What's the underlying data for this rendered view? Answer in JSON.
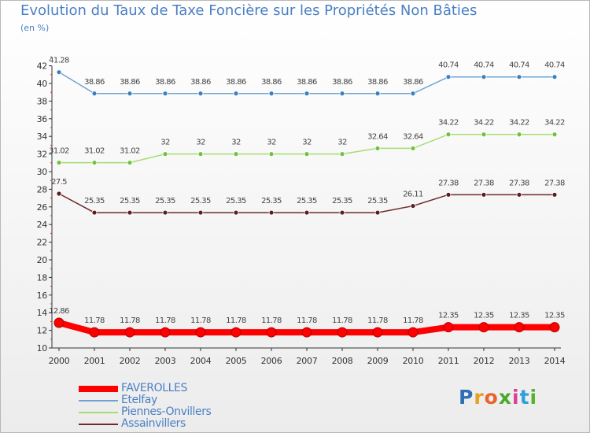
{
  "header": {
    "title": "Evolution du Taux de Taxe Foncière sur les Propriétés Non Bâties",
    "unit": "(en %)"
  },
  "logo": {
    "letters": [
      "P",
      "r",
      "o",
      "x",
      "i",
      "t",
      "i"
    ],
    "colors": [
      "#2f6fb5",
      "#e8a020",
      "#e8642c",
      "#4aa82a",
      "#d94090",
      "#2f9fd8",
      "#5ab030"
    ]
  },
  "chart_data": {
    "type": "line",
    "title": "Evolution du Taux de Taxe Foncière sur les Propriétés Non Bâties",
    "ylabel": "(en %)",
    "xlabel": "",
    "x": [
      "2000",
      "2001",
      "2002",
      "2003",
      "2004",
      "2005",
      "2006",
      "2007",
      "2008",
      "2009",
      "2010",
      "2011",
      "2012",
      "2013",
      "2014"
    ],
    "ylim": [
      10,
      42
    ],
    "yticks": [
      10,
      12,
      14,
      16,
      18,
      20,
      22,
      24,
      26,
      28,
      30,
      32,
      34,
      36,
      38,
      40,
      42
    ],
    "grid": false,
    "legend_position": "bottom-left",
    "series": [
      {
        "name": "FAVEROLLES",
        "color": "#ff0000",
        "emphasis": true,
        "values": [
          12.86,
          11.78,
          11.78,
          11.78,
          11.78,
          11.78,
          11.78,
          11.78,
          11.78,
          11.78,
          11.78,
          12.35,
          12.35,
          12.35,
          12.35
        ],
        "labels": [
          "12.86",
          "11.78",
          "11.78",
          "11.78",
          "11.78",
          "11.78",
          "11.78",
          "11.78",
          "11.78",
          "11.78",
          "11.78",
          "12.35",
          "12.35",
          "12.35",
          "12.35"
        ]
      },
      {
        "name": "Etelfay",
        "color": "#6fa3d0",
        "marker": "#3c80bf",
        "values": [
          41.28,
          38.86,
          38.86,
          38.86,
          38.86,
          38.86,
          38.86,
          38.86,
          38.86,
          38.86,
          38.86,
          40.74,
          40.74,
          40.74,
          40.74
        ],
        "labels": [
          "41.28",
          "38.86",
          "38.86",
          "38.86",
          "38.86",
          "38.86",
          "38.86",
          "38.86",
          "38.86",
          "38.86",
          "38.86",
          "40.74",
          "40.74",
          "40.74",
          "40.74"
        ]
      },
      {
        "name": "Piennes-Onvillers",
        "color": "#a8dc70",
        "marker": "#72c040",
        "values": [
          31.02,
          31.02,
          31.02,
          32,
          32,
          32,
          32,
          32,
          32,
          32.64,
          32.64,
          34.22,
          34.22,
          34.22,
          34.22
        ],
        "labels": [
          "31.02",
          "31.02",
          "31.02",
          "32",
          "32",
          "32",
          "32",
          "32",
          "32",
          "32.64",
          "32.64",
          "34.22",
          "34.22",
          "34.22",
          "34.22"
        ]
      },
      {
        "name": "Assainvillers",
        "color": "#6e2a2a",
        "marker": "#5a1f1f",
        "values": [
          27.5,
          25.35,
          25.35,
          25.35,
          25.35,
          25.35,
          25.35,
          25.35,
          25.35,
          25.35,
          26.11,
          27.38,
          27.38,
          27.38,
          27.38
        ],
        "labels": [
          "27.5",
          "25.35",
          "25.35",
          "25.35",
          "25.35",
          "25.35",
          "25.35",
          "25.35",
          "25.35",
          "25.35",
          "26.11",
          "27.38",
          "27.38",
          "27.38",
          "27.38"
        ]
      }
    ]
  }
}
